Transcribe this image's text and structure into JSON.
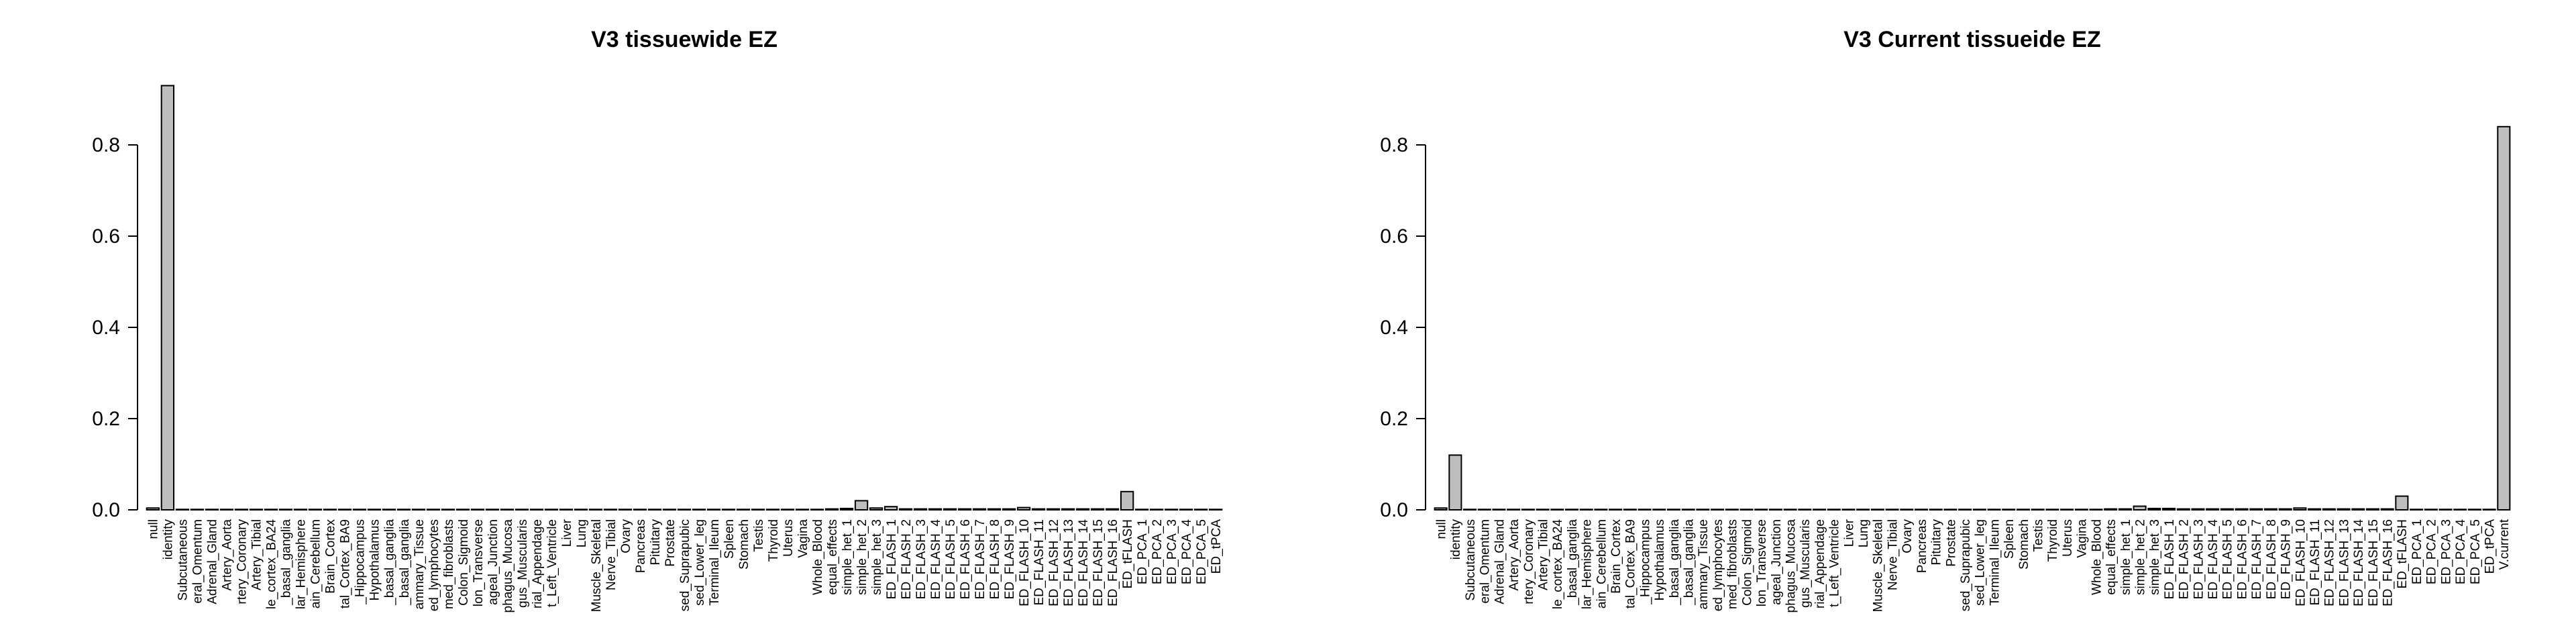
{
  "page": {
    "background": "#ffffff",
    "text_color": "#000000"
  },
  "chart_data": [
    {
      "type": "bar",
      "title": "V3 tissuewide EZ",
      "xlabel": "",
      "ylabel": "",
      "ylim": [
        0,
        0.95
      ],
      "grid": false,
      "legend": "none",
      "bar_fill": "#bebebe",
      "bar_stroke": "#000000",
      "y_ticks": [
        0,
        0.2,
        0.4,
        0.6,
        0.8
      ],
      "y_tick_labels": [
        "0.0",
        "0.2",
        "0.4",
        "0.6",
        "0.8"
      ],
      "categories": [
        "null",
        "identity",
        "Subcutaneous",
        "eral_Omentum",
        "Adrenal_Gland",
        "Artery_Aorta",
        "rtery_Coronary",
        "Artery_Tibial",
        "le_cortex_BA24",
        "_basal_ganglia",
        "lar_Hemisphere",
        "ain_Cerebellum",
        "Brain_Cortex",
        "tal_Cortex_BA9",
        "_Hippocampus",
        "Hypothalamus",
        "_basal_ganglia",
        "_basal_ganglia",
        "ammary_Tissue",
        "ed_lymphocytes",
        "med_fibroblasts",
        "Colon_Sigmoid",
        "lon_Transverse",
        "ageal_Junction",
        "phagus_Mucosa",
        "gus_Muscularis",
        "rial_Appendage",
        "t_Left_Ventricle",
        "Liver",
        "Lung",
        "Muscle_Skeletal",
        "Nerve_Tibial",
        "Ovary",
        "Pancreas",
        "Pituitary",
        "Prostate",
        "sed_Suprapubic",
        "sed_Lower_leg",
        "Terminal_Ileum",
        "Spleen",
        "Stomach",
        "Testis",
        "Thyroid",
        "Uterus",
        "Vagina",
        "Whole_Blood",
        "equal_effects",
        "simple_het_1",
        "simple_het_2",
        "simple_het_3",
        "ED_FLASH_1",
        "ED_FLASH_2",
        "ED_FLASH_3",
        "ED_FLASH_4",
        "ED_FLASH_5",
        "ED_FLASH_6",
        "ED_FLASH_7",
        "ED_FLASH_8",
        "ED_FLASH_9",
        "ED_FLASH_10",
        "ED_FLASH_11",
        "ED_FLASH_12",
        "ED_FLASH_13",
        "ED_FLASH_14",
        "ED_FLASH_15",
        "ED_FLASH_16",
        "ED_tFLASH",
        "ED_PCA_1",
        "ED_PCA_2",
        "ED_PCA_3",
        "ED_PCA_4",
        "ED_PCA_5",
        "ED_tPCA"
      ],
      "values": [
        0.004,
        0.93,
        0.001,
        0.001,
        0.001,
        0.001,
        0.001,
        0.001,
        0.001,
        0.001,
        0.001,
        0.001,
        0.001,
        0.001,
        0.001,
        0.001,
        0.001,
        0.001,
        0.001,
        0.001,
        0.001,
        0.001,
        0.001,
        0.001,
        0.001,
        0.001,
        0.001,
        0.001,
        0.001,
        0.001,
        0.001,
        0.001,
        0.001,
        0.001,
        0.001,
        0.001,
        0.001,
        0.001,
        0.001,
        0.001,
        0.001,
        0.001,
        0.001,
        0.001,
        0.001,
        0.001,
        0.002,
        0.003,
        0.02,
        0.004,
        0.007,
        0.002,
        0.002,
        0.002,
        0.002,
        0.002,
        0.002,
        0.002,
        0.002,
        0.005,
        0.002,
        0.002,
        0.002,
        0.002,
        0.002,
        0.002,
        0.04,
        0.001,
        0.001,
        0.001,
        0.001,
        0.001,
        0.001
      ]
    },
    {
      "type": "bar",
      "title": "V3 Current tissueide EZ",
      "xlabel": "",
      "ylabel": "",
      "ylim": [
        0,
        0.88
      ],
      "grid": false,
      "legend": "none",
      "bar_fill": "#bebebe",
      "bar_stroke": "#000000",
      "y_ticks": [
        0,
        0.2,
        0.4,
        0.6,
        0.8
      ],
      "y_tick_labels": [
        "0.0",
        "0.2",
        "0.4",
        "0.6",
        "0.8"
      ],
      "categories": [
        "null",
        "identity",
        "Subcutaneous",
        "eral_Omentum",
        "Adrenal_Gland",
        "Artery_Aorta",
        "rtery_Coronary",
        "Artery_Tibial",
        "le_cortex_BA24",
        "_basal_ganglia",
        "lar_Hemisphere",
        "ain_Cerebellum",
        "Brain_Cortex",
        "tal_Cortex_BA9",
        "_Hippocampus",
        "Hypothalamus",
        "_basal_ganglia",
        "_basal_ganglia",
        "ammary_Tissue",
        "ed_lymphocytes",
        "med_fibroblasts",
        "Colon_Sigmoid",
        "lon_Transverse",
        "ageal_Junction",
        "phagus_Mucosa",
        "gus_Muscularis",
        "rial_Appendage",
        "t_Left_Ventricle",
        "Liver",
        "Lung",
        "Muscle_Skeletal",
        "Nerve_Tibial",
        "Ovary",
        "Pancreas",
        "Pituitary",
        "Prostate",
        "sed_Suprapubic",
        "sed_Lower_leg",
        "Terminal_Ileum",
        "Spleen",
        "Stomach",
        "Testis",
        "Thyroid",
        "Uterus",
        "Vagina",
        "Whole_Blood",
        "equal_effects",
        "simple_het_1",
        "simple_het_2",
        "simple_het_3",
        "ED_FLASH_1",
        "ED_FLASH_2",
        "ED_FLASH_3",
        "ED_FLASH_4",
        "ED_FLASH_5",
        "ED_FLASH_6",
        "ED_FLASH_7",
        "ED_FLASH_8",
        "ED_FLASH_9",
        "ED_FLASH_10",
        "ED_FLASH_11",
        "ED_FLASH_12",
        "ED_FLASH_13",
        "ED_FLASH_14",
        "ED_FLASH_15",
        "ED_FLASH_16",
        "ED_tFLASH",
        "ED_PCA_1",
        "ED_PCA_2",
        "ED_PCA_3",
        "ED_PCA_4",
        "ED_PCA_5",
        "ED_tPCA",
        "V.current"
      ],
      "values": [
        0.004,
        0.12,
        0.001,
        0.001,
        0.001,
        0.001,
        0.001,
        0.001,
        0.001,
        0.001,
        0.001,
        0.001,
        0.001,
        0.001,
        0.001,
        0.001,
        0.001,
        0.001,
        0.001,
        0.001,
        0.001,
        0.001,
        0.001,
        0.001,
        0.001,
        0.001,
        0.001,
        0.001,
        0.001,
        0.001,
        0.001,
        0.001,
        0.001,
        0.001,
        0.001,
        0.001,
        0.001,
        0.001,
        0.001,
        0.001,
        0.001,
        0.001,
        0.001,
        0.001,
        0.001,
        0.001,
        0.002,
        0.002,
        0.008,
        0.003,
        0.003,
        0.002,
        0.002,
        0.002,
        0.002,
        0.002,
        0.002,
        0.002,
        0.002,
        0.004,
        0.002,
        0.002,
        0.002,
        0.002,
        0.002,
        0.002,
        0.03,
        0.001,
        0.001,
        0.001,
        0.001,
        0.001,
        0.001,
        0.84
      ]
    }
  ]
}
